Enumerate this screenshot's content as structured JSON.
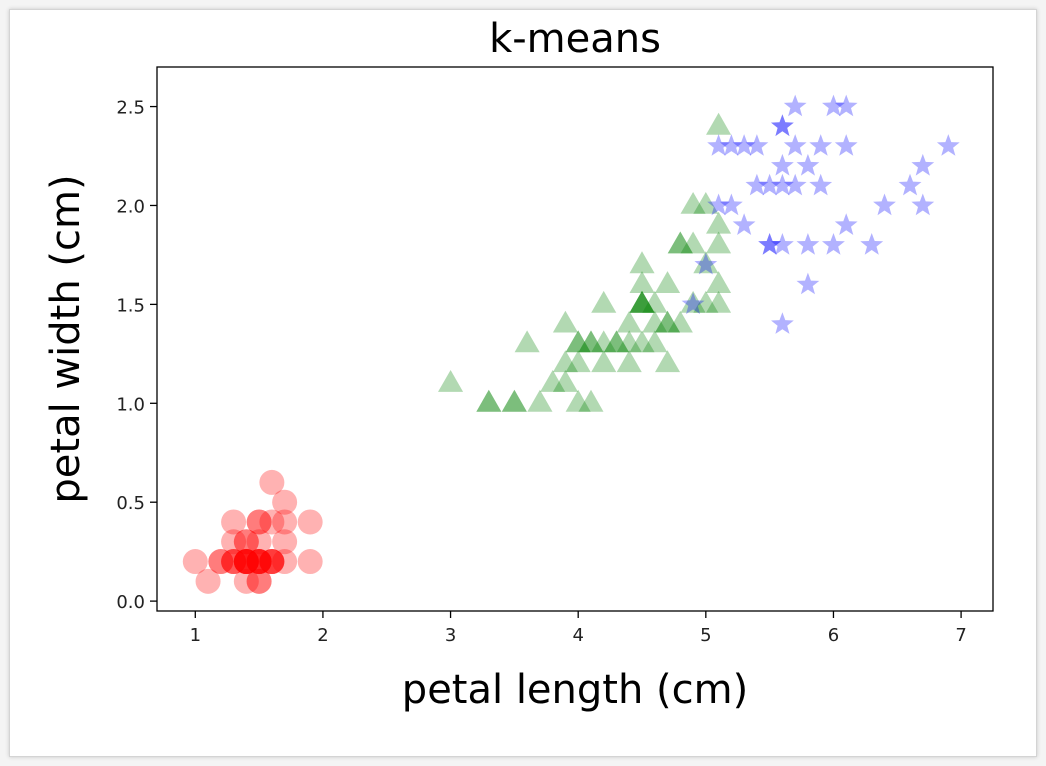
{
  "chart_data": {
    "type": "scatter",
    "title": "k-means",
    "xlabel": "petal length (cm)",
    "ylabel": "petal width (cm)",
    "xlim": [
      0.7,
      7.25
    ],
    "ylim": [
      -0.05,
      2.7
    ],
    "xticks": [
      1,
      2,
      3,
      4,
      5,
      6,
      7
    ],
    "yticks": [
      0.0,
      0.5,
      1.0,
      1.5,
      2.0,
      2.5
    ],
    "xtick_labels": [
      "1",
      "2",
      "3",
      "4",
      "5",
      "6",
      "7"
    ],
    "ytick_labels": [
      "0.0",
      "0.5",
      "1.0",
      "1.5",
      "2.0",
      "2.5"
    ],
    "grid": false,
    "legend": false,
    "series": [
      {
        "marker": "circle",
        "color": "#ff0000",
        "points": [
          [
            1.0,
            0.2
          ],
          [
            1.1,
            0.1
          ],
          [
            1.2,
            0.2
          ],
          [
            1.2,
            0.2
          ],
          [
            1.3,
            0.2
          ],
          [
            1.3,
            0.4
          ],
          [
            1.3,
            0.3
          ],
          [
            1.3,
            0.2
          ],
          [
            1.3,
            0.2
          ],
          [
            1.4,
            0.2
          ],
          [
            1.4,
            0.2
          ],
          [
            1.4,
            0.1
          ],
          [
            1.4,
            0.3
          ],
          [
            1.4,
            0.2
          ],
          [
            1.4,
            0.2
          ],
          [
            1.4,
            0.2
          ],
          [
            1.4,
            0.3
          ],
          [
            1.4,
            0.2
          ],
          [
            1.5,
            0.2
          ],
          [
            1.5,
            0.4
          ],
          [
            1.5,
            0.1
          ],
          [
            1.5,
            0.2
          ],
          [
            1.5,
            0.2
          ],
          [
            1.5,
            0.2
          ],
          [
            1.5,
            0.4
          ],
          [
            1.5,
            0.3
          ],
          [
            1.5,
            0.2
          ],
          [
            1.5,
            0.1
          ],
          [
            1.6,
            0.2
          ],
          [
            1.6,
            0.6
          ],
          [
            1.6,
            0.2
          ],
          [
            1.6,
            0.4
          ],
          [
            1.6,
            0.2
          ],
          [
            1.6,
            0.2
          ],
          [
            1.7,
            0.4
          ],
          [
            1.7,
            0.3
          ],
          [
            1.7,
            0.5
          ],
          [
            1.7,
            0.2
          ],
          [
            1.9,
            0.4
          ],
          [
            1.9,
            0.2
          ]
        ]
      },
      {
        "marker": "triangle",
        "color": "#008000",
        "points": [
          [
            3.0,
            1.1
          ],
          [
            3.3,
            1.0
          ],
          [
            3.3,
            1.0
          ],
          [
            3.5,
            1.0
          ],
          [
            3.5,
            1.0
          ],
          [
            3.6,
            1.3
          ],
          [
            3.7,
            1.0
          ],
          [
            3.8,
            1.1
          ],
          [
            3.9,
            1.1
          ],
          [
            3.9,
            1.2
          ],
          [
            3.9,
            1.4
          ],
          [
            4.0,
            1.3
          ],
          [
            4.0,
            1.0
          ],
          [
            4.0,
            1.2
          ],
          [
            4.0,
            1.3
          ],
          [
            4.1,
            1.3
          ],
          [
            4.1,
            1.0
          ],
          [
            4.1,
            1.3
          ],
          [
            4.2,
            1.2
          ],
          [
            4.2,
            1.3
          ],
          [
            4.2,
            1.5
          ],
          [
            4.3,
            1.3
          ],
          [
            4.3,
            1.3
          ],
          [
            4.4,
            1.4
          ],
          [
            4.4,
            1.3
          ],
          [
            4.4,
            1.2
          ],
          [
            4.5,
            1.5
          ],
          [
            4.5,
            1.5
          ],
          [
            4.5,
            1.5
          ],
          [
            4.5,
            1.3
          ],
          [
            4.5,
            1.7
          ],
          [
            4.5,
            1.6
          ],
          [
            4.5,
            1.5
          ],
          [
            4.6,
            1.5
          ],
          [
            4.6,
            1.3
          ],
          [
            4.6,
            1.4
          ],
          [
            4.7,
            1.4
          ],
          [
            4.7,
            1.6
          ],
          [
            4.7,
            1.2
          ],
          [
            4.7,
            1.4
          ],
          [
            4.8,
            1.8
          ],
          [
            4.8,
            1.8
          ],
          [
            4.8,
            1.4
          ],
          [
            4.9,
            1.5
          ],
          [
            4.9,
            1.8
          ],
          [
            4.9,
            2.0
          ],
          [
            5.0,
            1.7
          ],
          [
            5.0,
            2.0
          ],
          [
            5.0,
            1.5
          ],
          [
            5.1,
            1.6
          ],
          [
            5.1,
            1.9
          ],
          [
            5.1,
            1.5
          ],
          [
            5.1,
            2.4
          ],
          [
            5.1,
            1.8
          ]
        ]
      },
      {
        "marker": "star",
        "color": "#0000ff",
        "points": [
          [
            4.9,
            1.5
          ],
          [
            5.0,
            1.7
          ],
          [
            5.1,
            2.0
          ],
          [
            5.1,
            2.3
          ],
          [
            5.2,
            2.0
          ],
          [
            5.2,
            2.3
          ],
          [
            5.3,
            1.9
          ],
          [
            5.3,
            2.3
          ],
          [
            5.4,
            2.1
          ],
          [
            5.4,
            2.3
          ],
          [
            5.5,
            2.1
          ],
          [
            5.5,
            1.8
          ],
          [
            5.5,
            1.8
          ],
          [
            5.6,
            2.4
          ],
          [
            5.6,
            2.4
          ],
          [
            5.6,
            2.1
          ],
          [
            5.6,
            1.8
          ],
          [
            5.6,
            2.2
          ],
          [
            5.6,
            1.4
          ],
          [
            5.7,
            2.3
          ],
          [
            5.7,
            2.1
          ],
          [
            5.7,
            2.5
          ],
          [
            5.8,
            2.2
          ],
          [
            5.8,
            1.8
          ],
          [
            5.8,
            1.6
          ],
          [
            5.9,
            2.1
          ],
          [
            5.9,
            2.3
          ],
          [
            6.0,
            1.8
          ],
          [
            6.0,
            2.5
          ],
          [
            6.1,
            2.3
          ],
          [
            6.1,
            1.9
          ],
          [
            6.1,
            2.5
          ],
          [
            6.3,
            1.8
          ],
          [
            6.4,
            2.0
          ],
          [
            6.6,
            2.1
          ],
          [
            6.7,
            2.2
          ],
          [
            6.7,
            2.0
          ],
          [
            6.9,
            2.3
          ]
        ]
      }
    ]
  }
}
